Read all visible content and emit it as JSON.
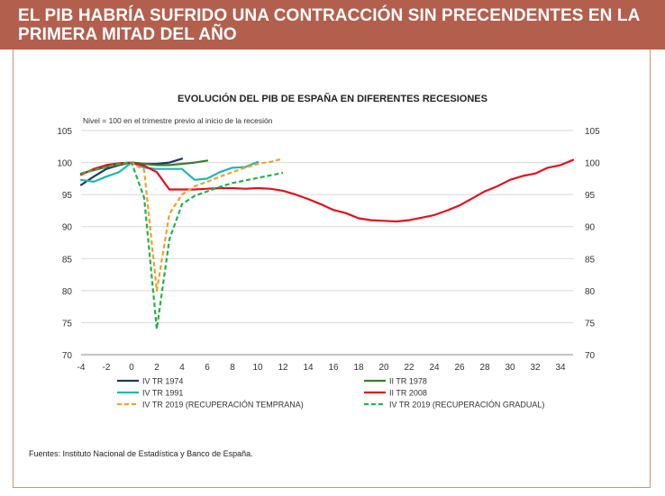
{
  "header": {
    "title": "EL PIB HABRÍA SUFRIDO UNA CONTRACCIÓN SIN PRECENDENTES EN LA PRIMERA MITAD DEL AÑO"
  },
  "source_note": "Fuentes: Instituto Nacional de Estadística y Banco de España.",
  "chart_data": {
    "type": "line",
    "title": "EVOLUCIÓN DEL PIB DE ESPAÑA EN DIFERENTES RECESIONES",
    "subtitle": "Nivel = 100 en el trimestre previo al inicio de la recesión",
    "xlabel": "",
    "ylabel": "",
    "xlim": [
      -4,
      35
    ],
    "ylim": [
      70,
      105
    ],
    "x_ticks": [
      "-4",
      "-2",
      "0",
      "2",
      "4",
      "6",
      "8",
      "10",
      "12",
      "14",
      "16",
      "18",
      "20",
      "22",
      "24",
      "26",
      "28",
      "30",
      "32",
      "34"
    ],
    "x_tick_values": [
      -4,
      -2,
      0,
      2,
      4,
      6,
      8,
      10,
      12,
      14,
      16,
      18,
      20,
      22,
      24,
      26,
      28,
      30,
      32,
      34
    ],
    "y_ticks": [
      "105",
      "100",
      "95",
      "90",
      "85",
      "80",
      "75",
      "70"
    ],
    "y_tick_values": [
      105,
      100,
      95,
      90,
      85,
      80,
      75,
      70
    ],
    "grid": "horizontal",
    "legend_position": "bottom",
    "series": [
      {
        "name": "IV TR 1974",
        "color": "#1f3864",
        "dash": "solid",
        "x": [
          -4,
          -3,
          -2,
          -1,
          0,
          1,
          2,
          3,
          4
        ],
        "y": [
          96.5,
          97.8,
          99.0,
          99.6,
          100,
          99.8,
          99.8,
          100.0,
          100.6
        ]
      },
      {
        "name": "II TR 1978",
        "color": "#3a7d32",
        "dash": "solid",
        "x": [
          -4,
          -3,
          -2,
          -1,
          0,
          1,
          2,
          3,
          4,
          5,
          6
        ],
        "y": [
          98.3,
          98.8,
          99.3,
          99.7,
          100,
          99.8,
          99.6,
          99.6,
          99.8,
          100.0,
          100.3
        ]
      },
      {
        "name": "IV TR 1991",
        "color": "#1fb7b0",
        "dash": "solid",
        "x": [
          -4,
          -3,
          -2,
          -1,
          0,
          1,
          2,
          3,
          4,
          5,
          6,
          7,
          8,
          9,
          10
        ],
        "y": [
          97.3,
          97.0,
          97.8,
          98.5,
          100,
          99.2,
          99.0,
          99.0,
          99.0,
          97.3,
          97.5,
          98.5,
          99.2,
          99.3,
          100.1
        ]
      },
      {
        "name": "II TR 2008",
        "color": "#e2101e",
        "dash": "solid",
        "x": [
          -4,
          -3,
          -2,
          -1,
          0,
          1,
          2,
          3,
          4,
          5,
          6,
          7,
          8,
          9,
          10,
          11,
          12,
          13,
          14,
          15,
          16,
          17,
          18,
          19,
          20,
          21,
          22,
          23,
          24,
          25,
          26,
          27,
          28,
          29,
          30,
          31,
          32,
          33,
          34,
          35
        ],
        "y": [
          98.1,
          99.0,
          99.6,
          99.9,
          100,
          99.5,
          98.5,
          95.8,
          95.8,
          95.8,
          95.9,
          96.0,
          96.0,
          95.9,
          96.0,
          95.9,
          95.6,
          95.0,
          94.3,
          93.5,
          92.6,
          92.1,
          91.3,
          91.0,
          90.9,
          90.8,
          91.0,
          91.4,
          91.8,
          92.5,
          93.3,
          94.4,
          95.5,
          96.3,
          97.3,
          97.9,
          98.3,
          99.2,
          99.6,
          100.4
        ]
      },
      {
        "name": "IV TR 2019 (RECUPERACIÓN TEMPRANA)",
        "color": "#f0a030",
        "dash": "dashed",
        "x": [
          -4,
          -3,
          -2,
          -1,
          0,
          1,
          2,
          3,
          4,
          5,
          6,
          7,
          8,
          9,
          10,
          11,
          12
        ],
        "y": [
          98.3,
          98.8,
          99.3,
          99.8,
          100,
          98.8,
          80.0,
          92.0,
          95.0,
          96.3,
          97.0,
          97.8,
          98.5,
          99.2,
          99.8,
          100.1,
          100.6
        ]
      },
      {
        "name": "IV TR 2019 (RECUPERACIÓN GRADUAL)",
        "color": "#21b24b",
        "dash": "dashed",
        "x": [
          -4,
          -3,
          -2,
          -1,
          0,
          1,
          2,
          3,
          4,
          5,
          6,
          7,
          8,
          9,
          10,
          11,
          12
        ],
        "y": [
          98.3,
          98.8,
          99.3,
          99.8,
          100,
          94.5,
          74.0,
          88.0,
          93.5,
          94.8,
          95.5,
          96.2,
          96.8,
          97.2,
          97.6,
          98.0,
          98.4
        ]
      }
    ]
  }
}
